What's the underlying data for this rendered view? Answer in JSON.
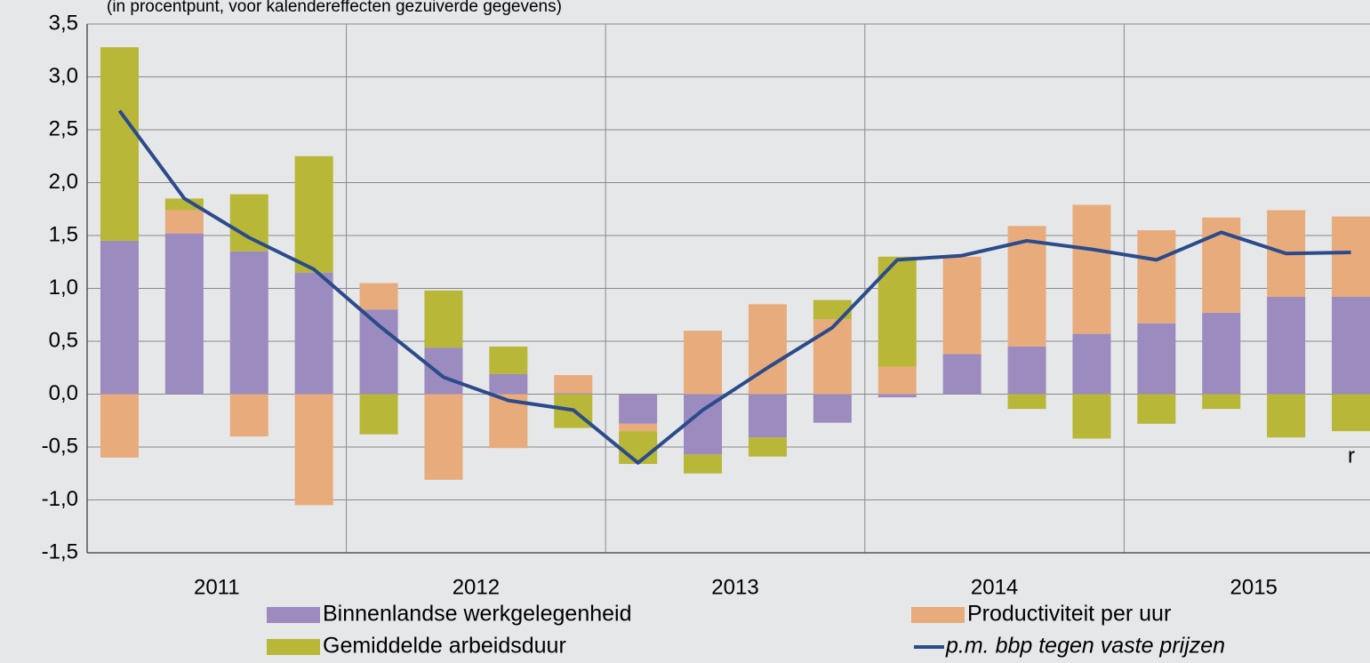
{
  "chart_data": {
    "type": "stacked-bar-line",
    "subtitle": "(in procentpunt, voor kalendereffecten gezuiverde gegevens)",
    "groups": [
      "2011",
      "2012",
      "2013",
      "2014",
      "2015"
    ],
    "categories": [
      null,
      null,
      null,
      null,
      null,
      null,
      null,
      null,
      null,
      null,
      null,
      null,
      null,
      null,
      null,
      null,
      null,
      null,
      null,
      null
    ],
    "series": [
      {
        "name": "Binnenlandse werkgelegenheid",
        "color": "#9b8bbf",
        "values": [
          1.45,
          1.52,
          1.35,
          1.15,
          0.8,
          0.44,
          0.19,
          0.01,
          -0.28,
          -0.57,
          -0.41,
          -0.27,
          -0.03,
          0.38,
          0.45,
          0.57,
          0.67,
          0.77,
          0.92,
          0.92
        ]
      },
      {
        "name": "Productiviteit per uur",
        "color": "#e8ab7c",
        "values": [
          -0.6,
          0.22,
          -0.4,
          -1.05,
          0.25,
          -0.81,
          -0.51,
          0.17,
          -0.07,
          0.6,
          0.85,
          0.71,
          0.26,
          0.92,
          1.14,
          1.22,
          0.88,
          0.9,
          0.82,
          0.76
        ]
      },
      {
        "name": "Gemiddelde arbeidsduur",
        "color": "#b8b737",
        "values": [
          1.83,
          0.11,
          0.54,
          1.1,
          -0.38,
          0.54,
          0.26,
          -0.32,
          -0.31,
          -0.18,
          -0.18,
          0.18,
          1.04,
          0,
          -0.14,
          -0.42,
          -0.28,
          -0.14,
          -0.41,
          -0.35
        ]
      }
    ],
    "line": {
      "name": "p.m. bbp tegen vaste prijzen",
      "color": "#2b4b8a",
      "values": [
        2.68,
        1.85,
        1.48,
        1.18,
        0.65,
        0.16,
        -0.06,
        -0.15,
        -0.65,
        -0.15,
        0.25,
        0.63,
        1.27,
        1.31,
        1.45,
        1.37,
        1.27,
        1.53,
        1.33,
        1.34
      ]
    },
    "annotations": [
      "r"
    ],
    "ylim": [
      -1.5,
      3.5
    ],
    "yticks": [
      {
        "value": -1.5,
        "label": "-1,5"
      },
      {
        "value": -1,
        "label": "-1,0"
      },
      {
        "value": -0.5,
        "label": "-0,5"
      },
      {
        "value": 0,
        "label": "0,0"
      },
      {
        "value": 0.5,
        "label": "0,5"
      },
      {
        "value": 1,
        "label": "1,0"
      },
      {
        "value": 1.5,
        "label": "1,5"
      },
      {
        "value": 2,
        "label": "2,0"
      },
      {
        "value": 2.5,
        "label": "2,5"
      },
      {
        "value": 3,
        "label": "3,0"
      },
      {
        "value": 3.5,
        "label": "3,5"
      }
    ],
    "grid": true
  }
}
